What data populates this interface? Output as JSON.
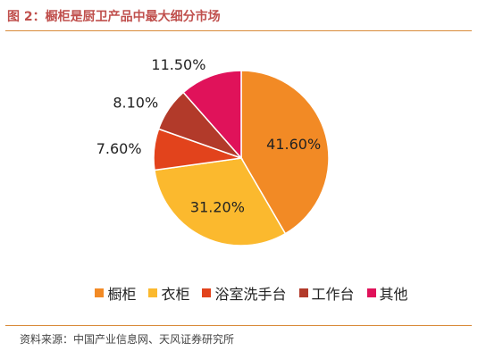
{
  "figure": {
    "title": "图 2：橱柜是厨卫产品中最大细分市场",
    "source": "资料来源：中国产业信息网、天风证券研究所"
  },
  "colors": {
    "accent_title": "#c0504d",
    "rule": "#d98b3a"
  },
  "chart_data": {
    "type": "pie",
    "categories": [
      "橱柜",
      "衣柜",
      "浴室洗手台",
      "工作台",
      "其他"
    ],
    "values": [
      41.6,
      31.2,
      7.6,
      8.1,
      11.5
    ],
    "labels": [
      "41.60%",
      "31.20%",
      "7.60%",
      "8.10%",
      "11.50%"
    ],
    "colors": [
      "#f28a25",
      "#fbb92e",
      "#e2431c",
      "#b23a2a",
      "#e0125a"
    ],
    "start_angle_deg": 0,
    "direction": "clockwise",
    "legend_position": "bottom"
  }
}
